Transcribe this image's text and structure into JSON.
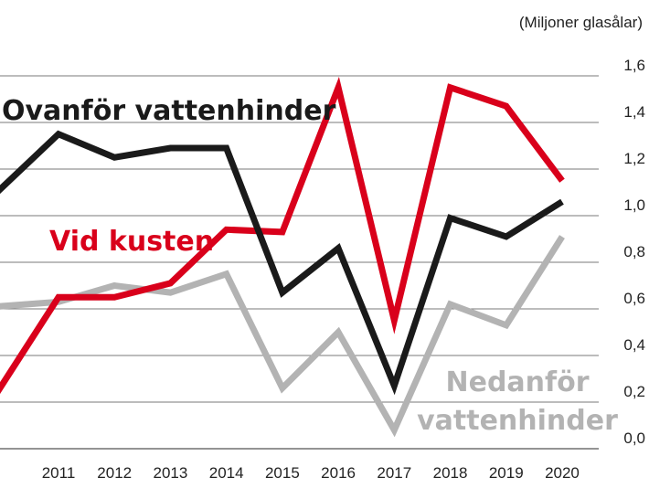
{
  "chart_data": {
    "type": "line",
    "unit_label": "(Miljoner glasålar)",
    "x": [
      2010,
      2011,
      2012,
      2013,
      2014,
      2015,
      2016,
      2017,
      2018,
      2019,
      2020
    ],
    "x_tick_labels": [
      "2011",
      "2012",
      "2013",
      "2014",
      "2015",
      "2016",
      "2017",
      "2018",
      "2019",
      "2020"
    ],
    "ylim": [
      0,
      1.6
    ],
    "y_ticks": [
      0,
      0.2,
      0.4,
      0.6,
      0.8,
      1.0,
      1.2,
      1.4,
      1.6
    ],
    "y_tick_labels": [
      "0,0",
      "0,2",
      "0,4",
      "0,6",
      "0,8",
      "1,0",
      "1,2",
      "1,4",
      "1,6"
    ],
    "grid": "horizontal",
    "legend": "direct labels",
    "series": [
      {
        "name": "Ovanför vattenhinder",
        "label_lines": [
          "Ovanför vattenhinder"
        ],
        "color": "#1a1a1a",
        "x": [
          2009.9,
          2011,
          2012,
          2013,
          2014,
          2015,
          2016,
          2017,
          2018,
          2019,
          2020
        ],
        "values": [
          1.1,
          1.35,
          1.25,
          1.29,
          1.29,
          0.67,
          0.86,
          0.27,
          0.99,
          0.91,
          1.06
        ]
      },
      {
        "name": "Vid kusten",
        "label_lines": [
          "Vid kusten"
        ],
        "color": "#d9001b",
        "x": [
          2009.9,
          2011,
          2012,
          2013,
          2014,
          2015,
          2016,
          2017,
          2018,
          2019,
          2020
        ],
        "values": [
          0.24,
          0.65,
          0.65,
          0.71,
          0.94,
          0.93,
          1.55,
          0.55,
          1.55,
          1.47,
          1.15
        ]
      },
      {
        "name": "Nedanför vattenhinder",
        "label_lines": [
          "Nedanför",
          "vattenhinder"
        ],
        "color": "#b3b3b3",
        "x": [
          2009.9,
          2011,
          2012,
          2013,
          2014,
          2015,
          2016,
          2017,
          2018,
          2019,
          2020
        ],
        "values": [
          0.61,
          0.63,
          0.7,
          0.67,
          0.75,
          0.26,
          0.5,
          0.08,
          0.62,
          0.53,
          0.91
        ]
      }
    ]
  }
}
